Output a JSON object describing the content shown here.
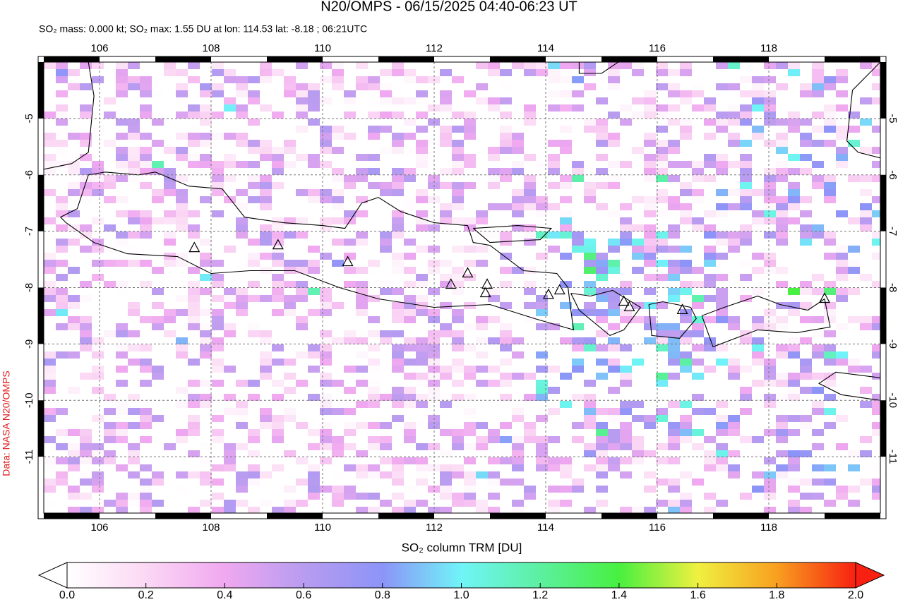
{
  "chart_data": {
    "type": "map",
    "title": "N20/OMPS - 06/15/2025 04:40-06:23 UT",
    "subtitle": "SO₂ mass: 0.000 kt; SO₂ max: 1.55 DU at lon: 114.53 lat: -8.18 ; 06:21UTC",
    "xlim": [
      105,
      120
    ],
    "ylim": [
      -12,
      -4
    ],
    "xticks": [
      106,
      108,
      110,
      112,
      114,
      116,
      118
    ],
    "yticks": [
      -5,
      -6,
      -7,
      -8,
      -9,
      -10,
      -11
    ],
    "grid": true,
    "colorbar": {
      "label": "SO₂ column TRM [DU]",
      "lim": [
        0,
        2
      ],
      "ticks": [
        {
          "value": 0,
          "label": "0.0"
        },
        {
          "value": 0.2,
          "label": "0.2"
        },
        {
          "value": 0.4,
          "label": "0.4"
        },
        {
          "value": 0.6,
          "label": "0.6"
        },
        {
          "value": 0.8,
          "label": "0.8"
        },
        {
          "value": 1,
          "label": "1.0"
        },
        {
          "value": 1.2,
          "label": "1.2"
        },
        {
          "value": 1.4,
          "label": "1.4"
        },
        {
          "value": 1.6,
          "label": "1.6"
        },
        {
          "value": 1.8,
          "label": "1.8"
        },
        {
          "value": 2,
          "label": "2.0"
        }
      ]
    },
    "credit": "Data: NASA N20/OMPS"
  }
}
